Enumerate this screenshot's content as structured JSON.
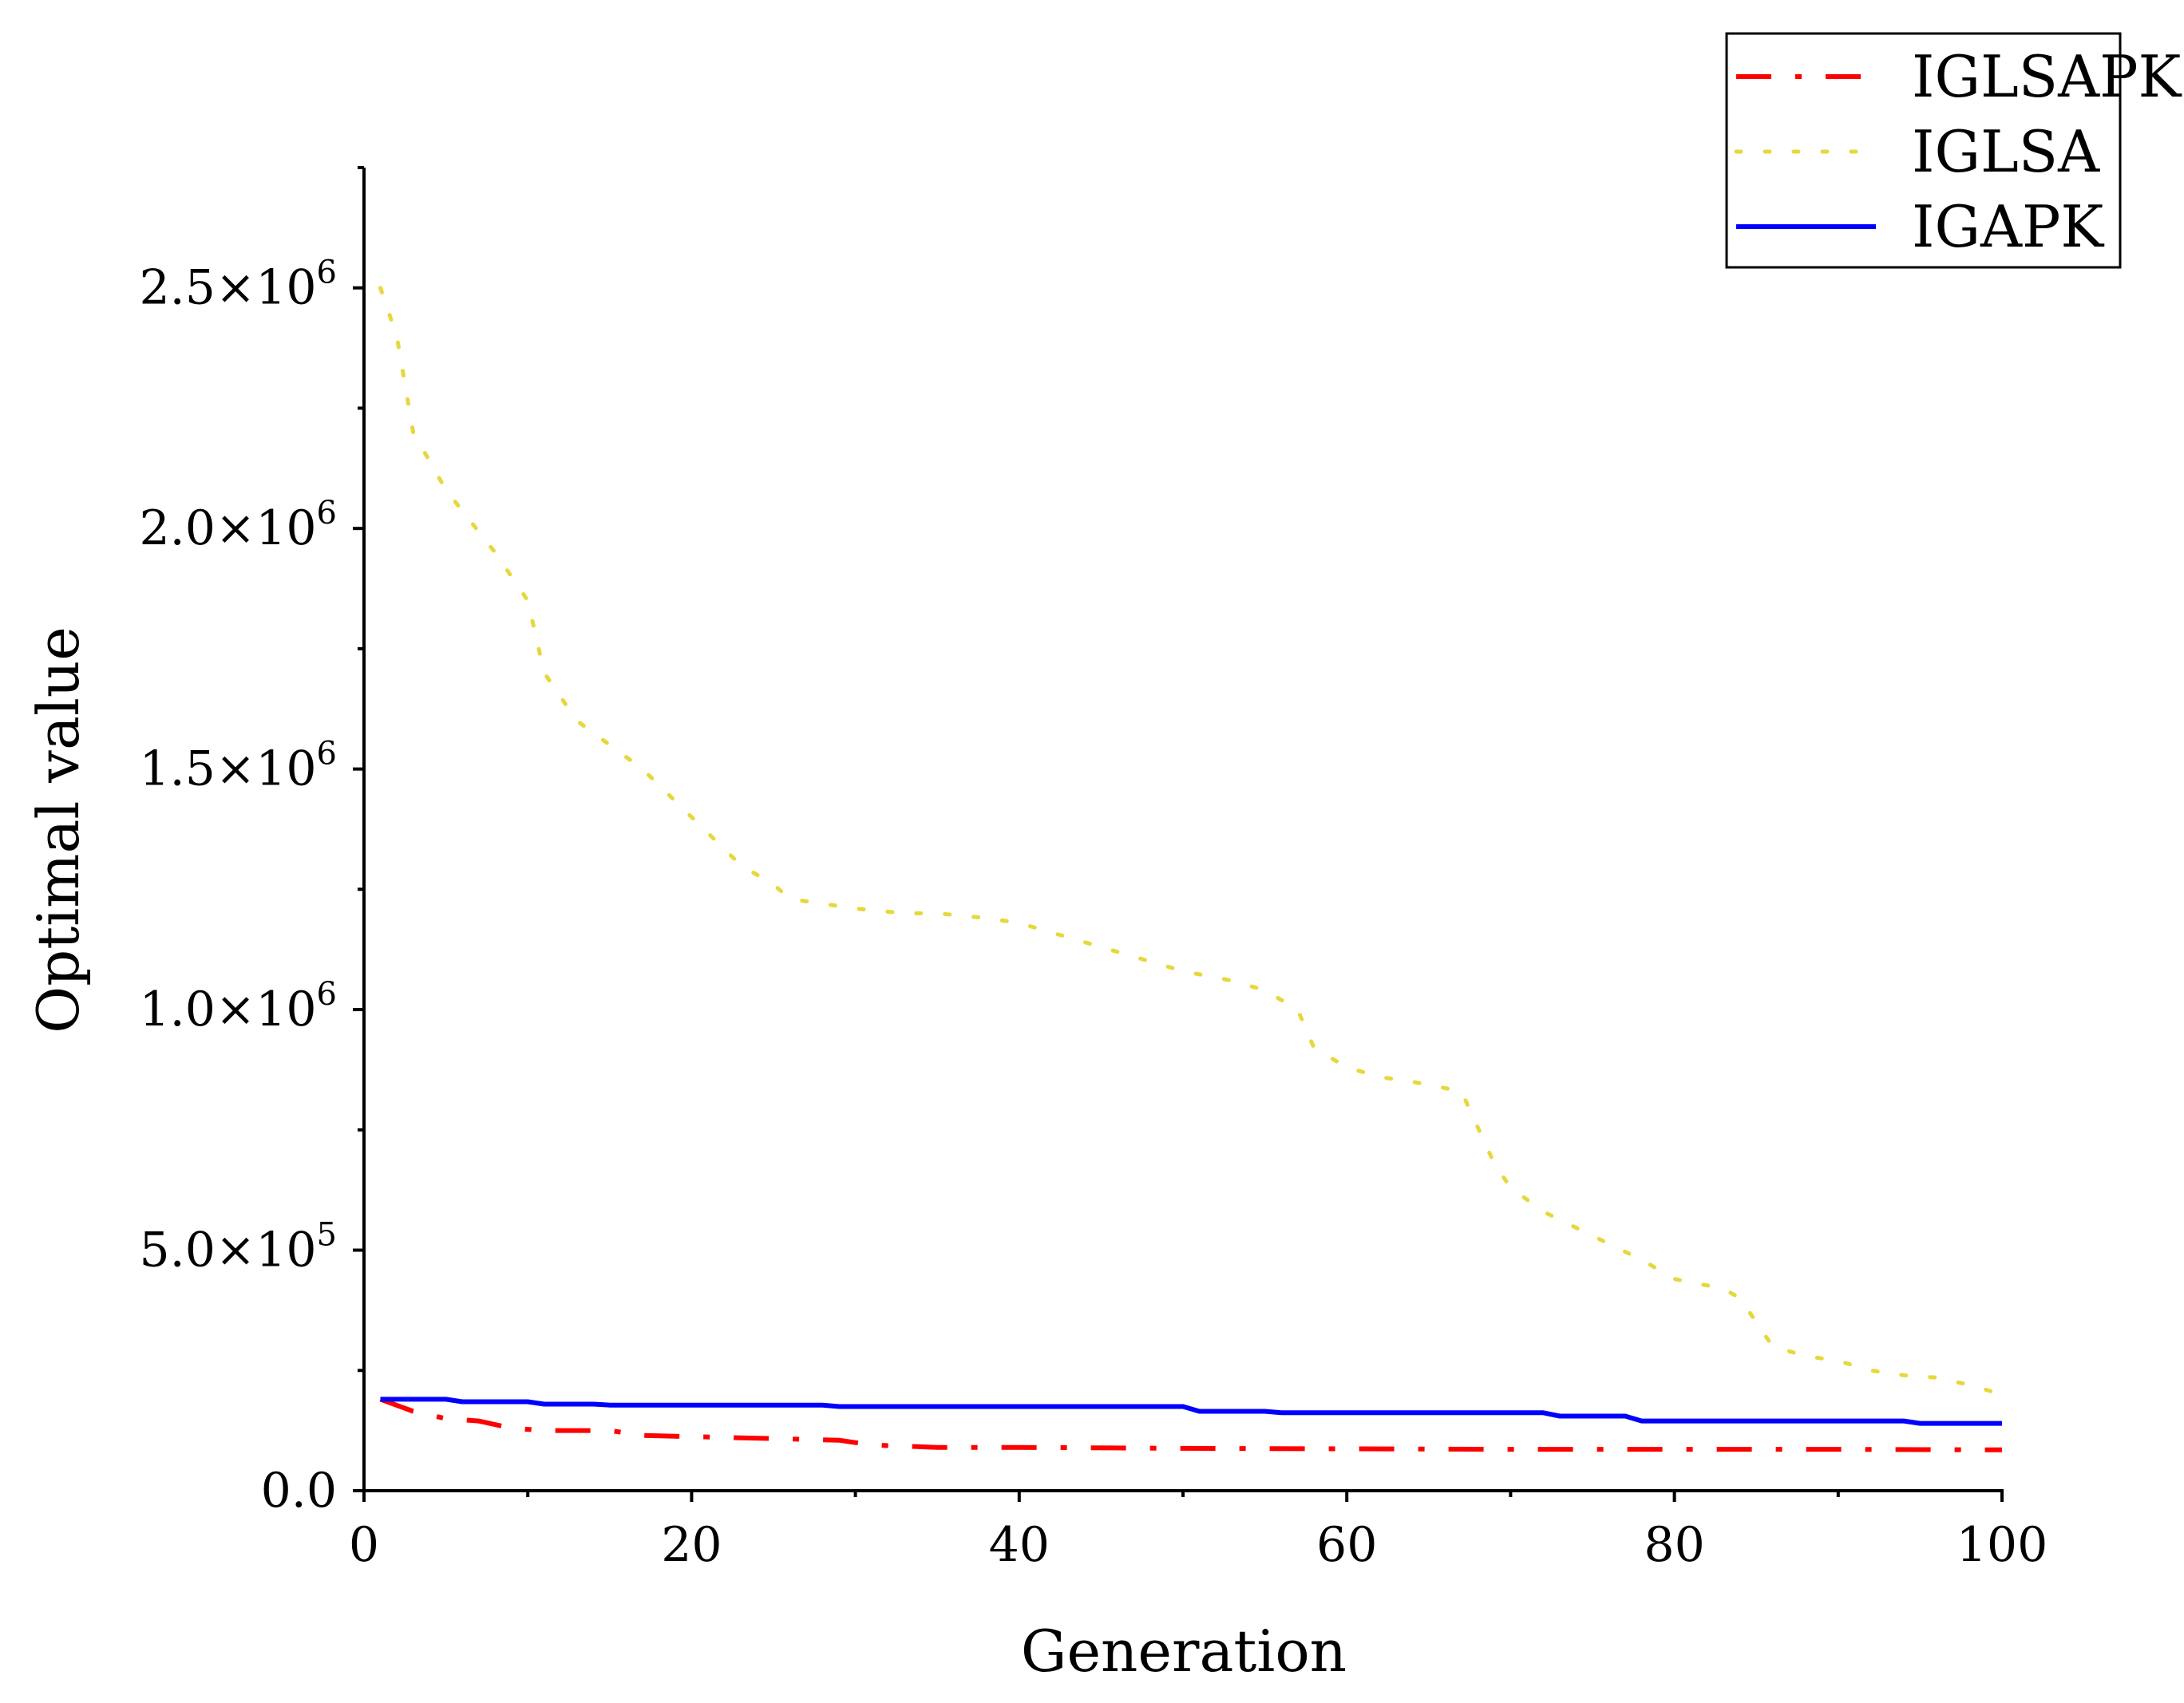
{
  "chart_data": {
    "type": "line",
    "title": "",
    "xlabel": "Generation",
    "ylabel": "Optimal value",
    "xlim": [
      0,
      100
    ],
    "ylim": [
      0,
      2750000
    ],
    "grid": false,
    "legend_position": "top-right",
    "x_ticks": [
      {
        "value": 0,
        "label": "0"
      },
      {
        "value": 20,
        "label": "20"
      },
      {
        "value": 40,
        "label": "40"
      },
      {
        "value": 60,
        "label": "60"
      },
      {
        "value": 80,
        "label": "80"
      },
      {
        "value": 100,
        "label": "100"
      }
    ],
    "y_ticks": [
      {
        "value": 0,
        "mantissa": "0.0",
        "exponent": ""
      },
      {
        "value": 500000,
        "mantissa": "5.0×10",
        "exponent": "5"
      },
      {
        "value": 1000000,
        "mantissa": "1.0×10",
        "exponent": "6"
      },
      {
        "value": 1500000,
        "mantissa": "1.5×10",
        "exponent": "6"
      },
      {
        "value": 2000000,
        "mantissa": "2.0×10",
        "exponent": "6"
      },
      {
        "value": 2500000,
        "mantissa": "2.5×10",
        "exponent": "6"
      }
    ],
    "series": [
      {
        "name": "IGLSAPK",
        "color": "#ff0000",
        "style": "dash-dot",
        "x": [
          1,
          3,
          5,
          7,
          9,
          11,
          15,
          17,
          23,
          29,
          31,
          35,
          40,
          50,
          60,
          70,
          80,
          90,
          100
        ],
        "y": [
          190000,
          165000,
          150000,
          145000,
          130000,
          125000,
          125000,
          115000,
          110000,
          105000,
          95000,
          90000,
          90000,
          88000,
          87000,
          86000,
          86000,
          86000,
          85000
        ]
      },
      {
        "name": "IGLSA",
        "color": "#e6d83c",
        "style": "dotted",
        "x": [
          1,
          2,
          3,
          5,
          8,
          10,
          11,
          13,
          17,
          20,
          23,
          25,
          26,
          30,
          33,
          35,
          38,
          40,
          42,
          46,
          50,
          53,
          55,
          57,
          58,
          60,
          62,
          64,
          67,
          69,
          70,
          72,
          75,
          78,
          80,
          83,
          84,
          86,
          88,
          90,
          92,
          94,
          96,
          98,
          100
        ],
        "y": [
          2500000,
          2400000,
          2200000,
          2080000,
          1950000,
          1850000,
          1700000,
          1600000,
          1500000,
          1400000,
          1300000,
          1260000,
          1230000,
          1210000,
          1200000,
          1200000,
          1190000,
          1180000,
          1160000,
          1120000,
          1080000,
          1060000,
          1040000,
          1000000,
          920000,
          880000,
          860000,
          850000,
          830000,
          680000,
          630000,
          580000,
          530000,
          480000,
          440000,
          420000,
          400000,
          300000,
          280000,
          270000,
          250000,
          240000,
          235000,
          220000,
          200000
        ]
      },
      {
        "name": "IGAPK",
        "color": "#0000ff",
        "style": "solid",
        "x": [
          1,
          5,
          6,
          10,
          11,
          14,
          15,
          28,
          29,
          50,
          51,
          55,
          56,
          72,
          73,
          77,
          78,
          94,
          95,
          100
        ],
        "y": [
          190000,
          190000,
          185000,
          185000,
          180000,
          180000,
          178000,
          178000,
          175000,
          175000,
          165000,
          165000,
          162000,
          162000,
          155000,
          155000,
          145000,
          145000,
          140000,
          140000
        ]
      }
    ]
  }
}
